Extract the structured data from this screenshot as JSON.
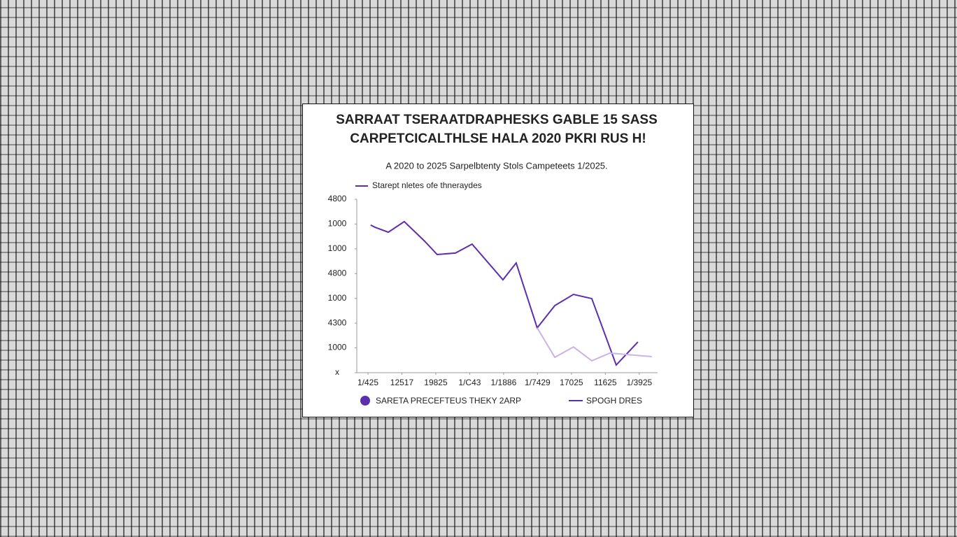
{
  "chart_data": {
    "type": "line",
    "title": [
      "SARRAAT TSERAATDRAPHESKS GABLE 15 SASS",
      "CARPETCICALTHLSE HALA 2020 PKRI RUS H!"
    ],
    "subtitle": "A 2020 to 2025 Sarpelbtenty Stols Campeteets 1/2025.",
    "annotation": "Starept nletes ofe thneraydes",
    "xlim": [
      -0.33,
      8.54
    ],
    "xticks": [
      {
        "value": 0,
        "label": "1/425"
      },
      {
        "value": 1,
        "label": "12517"
      },
      {
        "value": 2,
        "label": "19825"
      },
      {
        "value": 3,
        "label": "1/C43"
      },
      {
        "value": 4,
        "label": "1/1886"
      },
      {
        "value": 5,
        "label": "1/7429"
      },
      {
        "value": 6,
        "label": "17025"
      },
      {
        "value": 7,
        "label": "11625"
      },
      {
        "value": 8,
        "label": "1/3925"
      }
    ],
    "ylim": [
      0,
      7
    ],
    "yticks": [
      {
        "value": 0,
        "label": "x"
      },
      {
        "value": 1,
        "label": "1000"
      },
      {
        "value": 2,
        "label": "4300"
      },
      {
        "value": 3,
        "label": "1000"
      },
      {
        "value": 4,
        "label": "4800"
      },
      {
        "value": 5,
        "label": "1000"
      },
      {
        "value": 6,
        "label": "1000"
      },
      {
        "value": 7,
        "label": "4800"
      }
    ],
    "series": [
      {
        "name": "SARETA PRECEFTEUS THEKY 2ARP",
        "color": "#5b2fb0",
        "x": [
          0.08,
          0.21,
          0.6,
          1.07,
          1.67,
          2.04,
          2.58,
          3.07,
          3.98,
          4.37,
          4.99,
          5.51,
          6.06,
          6.6,
          7.32,
          7.96
        ],
        "values": [
          5.96,
          5.87,
          5.67,
          6.1,
          5.31,
          4.77,
          4.83,
          5.19,
          3.75,
          4.43,
          1.81,
          2.71,
          3.16,
          2.99,
          0.31,
          1.24
        ]
      },
      {
        "name": "SPOGH DRES",
        "color": "#c9b3e6",
        "x": [
          4.99,
          5.51,
          6.06,
          6.6,
          7.13,
          8.37
        ],
        "values": [
          1.81,
          0.62,
          1.04,
          0.48,
          0.79,
          0.65
        ]
      }
    ]
  }
}
